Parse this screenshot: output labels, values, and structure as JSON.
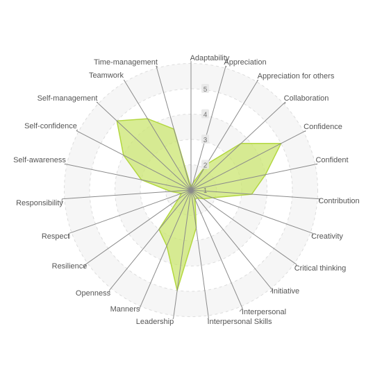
{
  "chart_data": {
    "type": "radar",
    "title": "",
    "axes": [
      "Adaptability",
      "Appreciation",
      "Appreciation for others",
      "Collaboration",
      "Confidence",
      "Confident",
      "Contribution",
      "Creativity",
      "Critical thinking",
      "Initiative",
      "Interpersonal",
      "Interpersonal Skills",
      "Leadership",
      "Manners",
      "Openness",
      "Resilience",
      "Respect",
      "Responsibility",
      "Self-awareness",
      "Self-confidence",
      "Self-management",
      "Teamwork",
      "Time-management"
    ],
    "radial_ticks": [
      "1",
      "2",
      "3",
      "4",
      "5"
    ],
    "rmin": 1,
    "rmax": 5,
    "series": [
      {
        "name": "",
        "values": [
          1.1,
          1.3,
          2.2,
          3.7,
          5.0,
          4.0,
          3.4,
          1.9,
          1.6,
          1.4,
          1.4,
          2.5,
          5.0,
          3.4,
          3.0,
          1.6,
          1.4,
          1.8,
          3.0,
          4.0,
          5.0,
          4.3,
          3.5
        ],
        "color": "#b3d740"
      }
    ],
    "grid": true,
    "legend": "none",
    "colors": {
      "fill": "#c9e46b",
      "stroke": "#b3d740",
      "spoke": "#8a8a8a",
      "grid": "#dddddd",
      "band": "#f6f6f6",
      "label": "#555555",
      "tick_label": "#777777"
    }
  }
}
